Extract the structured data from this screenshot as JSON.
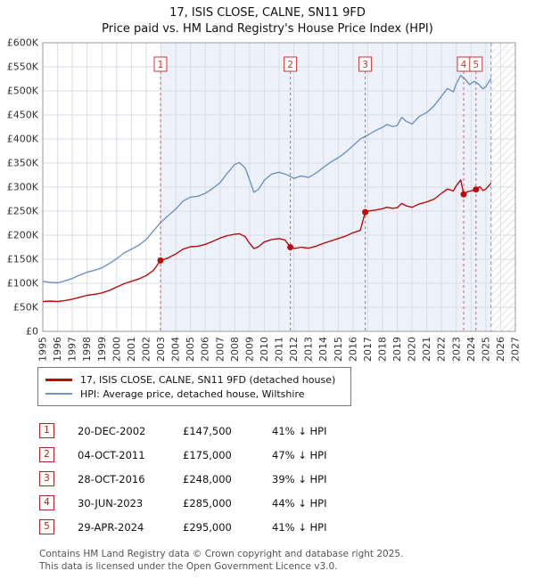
{
  "header": {
    "title": "17, ISIS CLOSE, CALNE, SN11 9FD",
    "subtitle": "Price paid vs. HM Land Registry's House Price Index (HPI)"
  },
  "legend": {
    "property": "17, ISIS CLOSE, CALNE, SN11 9FD (detached house)",
    "hpi": "HPI: Average price, detached house, Wiltshire"
  },
  "transactions": [
    {
      "num": "1",
      "date": "20-DEC-2002",
      "price": "£147,500",
      "hpi_diff": "41% ↓ HPI"
    },
    {
      "num": "2",
      "date": "04-OCT-2011",
      "price": "£175,000",
      "hpi_diff": "47% ↓ HPI"
    },
    {
      "num": "3",
      "date": "28-OCT-2016",
      "price": "£248,000",
      "hpi_diff": "39% ↓ HPI"
    },
    {
      "num": "4",
      "date": "30-JUN-2023",
      "price": "£285,000",
      "hpi_diff": "44% ↓ HPI"
    },
    {
      "num": "5",
      "date": "29-APR-2024",
      "price": "£295,000",
      "hpi_diff": "41% ↓ HPI"
    }
  ],
  "footer": {
    "line1": "Contains HM Land Registry data © Crown copyright and database right 2025.",
    "line2": "This data is licensed under the Open Government Licence v3.0."
  },
  "chart_data": {
    "type": "line",
    "title": "17, ISIS CLOSE, CALNE, SN11 9FD",
    "subtitle": "Price paid vs. HM Land Registry's House Price Index (HPI)",
    "x_range_years": [
      1995,
      2027
    ],
    "y_max_k": 600,
    "y_values_unit": "thousand GBP",
    "y_ticks": [
      "£0",
      "£50K",
      "£100K",
      "£150K",
      "£200K",
      "£250K",
      "£300K",
      "£350K",
      "£400K",
      "£450K",
      "£500K",
      "£550K",
      "£600K"
    ],
    "x_ticks": [
      1995,
      1996,
      1997,
      1998,
      1999,
      2000,
      2001,
      2002,
      2003,
      2004,
      2005,
      2006,
      2007,
      2008,
      2009,
      2010,
      2011,
      2012,
      2013,
      2014,
      2015,
      2016,
      2017,
      2018,
      2019,
      2020,
      2021,
      2022,
      2023,
      2024,
      2025,
      2026,
      2027
    ],
    "colors": {
      "property": "#bf0a0a",
      "hpi": "#6e93c4",
      "sale_line": "#cc3333",
      "shade": "#dbe6f6",
      "grid": "#d9dde5",
      "frame": "#999999",
      "now_line": "#8899bb",
      "hatch": "#cfcfcf"
    },
    "shaded_region": [
      2002.97,
      2025.35
    ],
    "future_from": 2025.35,
    "series": [
      {
        "name": "17, ISIS CLOSE, CALNE, SN11 9FD (detached house)",
        "color": "#bf0a0a",
        "points": [
          [
            1995,
            62
          ],
          [
            1995.5,
            63
          ],
          [
            1996,
            62
          ],
          [
            1996.5,
            64
          ],
          [
            1997,
            67
          ],
          [
            1997.5,
            71
          ],
          [
            1998,
            75
          ],
          [
            1998.5,
            77
          ],
          [
            1999,
            80
          ],
          [
            1999.5,
            85
          ],
          [
            2000,
            92
          ],
          [
            2000.5,
            99
          ],
          [
            2001,
            104
          ],
          [
            2001.5,
            109
          ],
          [
            2002,
            116
          ],
          [
            2002.5,
            127
          ],
          [
            2002.97,
            147.5
          ],
          [
            2003.5,
            153
          ],
          [
            2004,
            161
          ],
          [
            2004.5,
            171
          ],
          [
            2005,
            176
          ],
          [
            2005.5,
            177
          ],
          [
            2006,
            181
          ],
          [
            2006.5,
            187
          ],
          [
            2007,
            194
          ],
          [
            2007.5,
            199
          ],
          [
            2008,
            202
          ],
          [
            2008.3,
            203
          ],
          [
            2008.7,
            197
          ],
          [
            2009,
            183
          ],
          [
            2009.3,
            172
          ],
          [
            2009.6,
            176
          ],
          [
            2010,
            186
          ],
          [
            2010.5,
            191
          ],
          [
            2011,
            193
          ],
          [
            2011.4,
            190
          ],
          [
            2011.76,
            175
          ],
          [
            2012,
            172
          ],
          [
            2012.5,
            175
          ],
          [
            2013,
            173
          ],
          [
            2013.5,
            177
          ],
          [
            2014,
            183
          ],
          [
            2014.5,
            188
          ],
          [
            2015,
            193
          ],
          [
            2015.5,
            198
          ],
          [
            2016,
            205
          ],
          [
            2016.5,
            210
          ],
          [
            2016.83,
            248
          ],
          [
            2017,
            250
          ],
          [
            2017.5,
            252
          ],
          [
            2018,
            255
          ],
          [
            2018.3,
            258
          ],
          [
            2018.7,
            256
          ],
          [
            2019,
            257
          ],
          [
            2019.3,
            266
          ],
          [
            2019.6,
            261
          ],
          [
            2020,
            258
          ],
          [
            2020.5,
            265
          ],
          [
            2021,
            269
          ],
          [
            2021.5,
            275
          ],
          [
            2022,
            287
          ],
          [
            2022.4,
            296
          ],
          [
            2022.8,
            292
          ],
          [
            2023,
            303
          ],
          [
            2023.3,
            315
          ],
          [
            2023.5,
            285
          ],
          [
            2023.8,
            291
          ],
          [
            2024,
            292
          ],
          [
            2024.33,
            295
          ],
          [
            2024.6,
            301
          ],
          [
            2024.8,
            293
          ],
          [
            2025,
            296
          ],
          [
            2025.35,
            308
          ]
        ]
      },
      {
        "name": "HPI: Average price, detached house, Wiltshire",
        "color": "#6e93c4",
        "points": [
          [
            1995,
            104
          ],
          [
            1995.5,
            102
          ],
          [
            1996,
            101
          ],
          [
            1996.5,
            105
          ],
          [
            1997,
            110
          ],
          [
            1997.5,
            117
          ],
          [
            1998,
            123
          ],
          [
            1998.5,
            127
          ],
          [
            1999,
            132
          ],
          [
            1999.5,
            141
          ],
          [
            2000,
            151
          ],
          [
            2000.5,
            163
          ],
          [
            2001,
            171
          ],
          [
            2001.5,
            179
          ],
          [
            2002,
            191
          ],
          [
            2002.5,
            209
          ],
          [
            2003,
            227
          ],
          [
            2003.5,
            241
          ],
          [
            2004,
            254
          ],
          [
            2004.5,
            271
          ],
          [
            2005,
            279
          ],
          [
            2005.5,
            281
          ],
          [
            2006,
            287
          ],
          [
            2006.5,
            297
          ],
          [
            2007,
            309
          ],
          [
            2007.5,
            329
          ],
          [
            2008,
            347
          ],
          [
            2008.3,
            351
          ],
          [
            2008.7,
            340
          ],
          [
            2009,
            315
          ],
          [
            2009.3,
            289
          ],
          [
            2009.6,
            295
          ],
          [
            2010,
            314
          ],
          [
            2010.5,
            327
          ],
          [
            2011,
            331
          ],
          [
            2011.5,
            326
          ],
          [
            2012,
            318
          ],
          [
            2012.5,
            323
          ],
          [
            2013,
            320
          ],
          [
            2013.5,
            329
          ],
          [
            2014,
            341
          ],
          [
            2014.5,
            352
          ],
          [
            2015,
            361
          ],
          [
            2015.5,
            372
          ],
          [
            2016,
            386
          ],
          [
            2016.5,
            400
          ],
          [
            2017,
            408
          ],
          [
            2017.5,
            417
          ],
          [
            2018,
            424
          ],
          [
            2018.3,
            430
          ],
          [
            2018.7,
            426
          ],
          [
            2019,
            428
          ],
          [
            2019.3,
            445
          ],
          [
            2019.6,
            437
          ],
          [
            2020,
            431
          ],
          [
            2020.5,
            447
          ],
          [
            2021,
            455
          ],
          [
            2021.5,
            469
          ],
          [
            2022,
            489
          ],
          [
            2022.4,
            505
          ],
          [
            2022.8,
            498
          ],
          [
            2023,
            515
          ],
          [
            2023.3,
            532
          ],
          [
            2023.6,
            524
          ],
          [
            2023.9,
            513
          ],
          [
            2024.2,
            520
          ],
          [
            2024.5,
            514
          ],
          [
            2024.8,
            504
          ],
          [
            2025,
            509
          ],
          [
            2025.35,
            526
          ]
        ]
      }
    ],
    "sales": [
      {
        "num": 1,
        "x": 2002.97,
        "price_k": 147.5
      },
      {
        "num": 2,
        "x": 2011.76,
        "price_k": 175
      },
      {
        "num": 3,
        "x": 2016.83,
        "price_k": 248
      },
      {
        "num": 4,
        "x": 2023.5,
        "price_k": 285
      },
      {
        "num": 5,
        "x": 2024.33,
        "price_k": 295
      }
    ]
  }
}
